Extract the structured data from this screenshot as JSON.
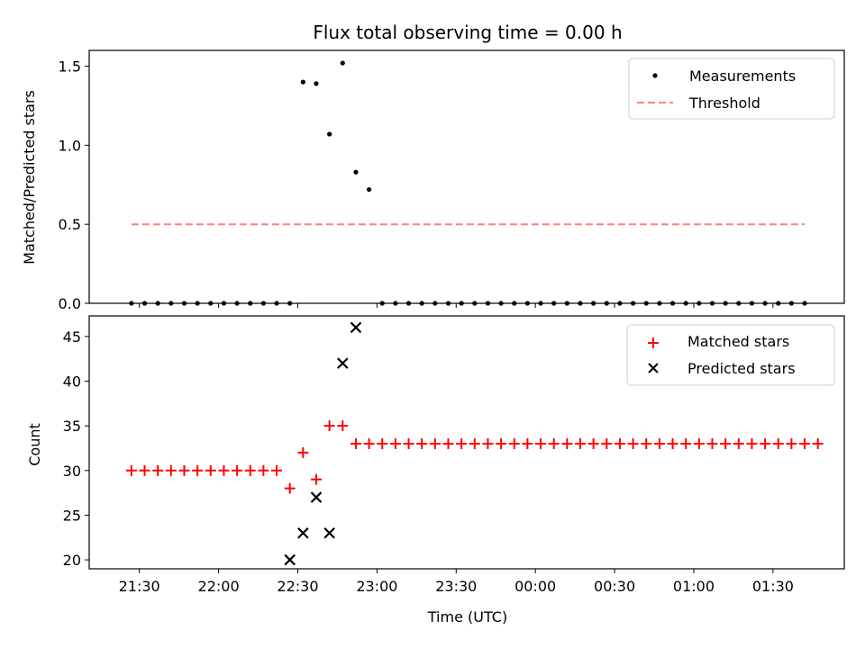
{
  "chart_data": [
    {
      "type": "scatter",
      "title": "Flux total observing time = 0.00 h",
      "ylabel": "Matched/Predicted stars",
      "xlabel": "",
      "ylim": [
        0,
        1.6
      ],
      "yticks": [
        "0.0",
        "0.5",
        "1.0",
        "1.5"
      ],
      "ytick_values": [
        0,
        0.5,
        1.0,
        1.5
      ],
      "legend_position": "top-right",
      "series": [
        {
          "name": "Measurements",
          "marker": "dot",
          "color": "#000000",
          "times": [
            "21:27",
            "21:32",
            "21:37",
            "21:42",
            "21:47",
            "21:52",
            "21:57",
            "22:02",
            "22:07",
            "22:12",
            "22:17",
            "22:22",
            "22:27",
            "22:32",
            "22:37",
            "22:42",
            "22:47",
            "22:52",
            "22:57",
            "23:02",
            "23:07",
            "23:12",
            "23:17",
            "23:22",
            "23:27",
            "23:32",
            "23:37",
            "23:42",
            "23:47",
            "23:52",
            "23:57",
            "00:02",
            "00:07",
            "00:12",
            "00:17",
            "00:22",
            "00:27",
            "00:32",
            "00:37",
            "00:42",
            "00:47",
            "00:52",
            "00:57",
            "01:02",
            "01:07",
            "01:12",
            "01:17",
            "01:22",
            "01:27",
            "01:32",
            "01:37",
            "01:42"
          ],
          "values": [
            0,
            0,
            0,
            0,
            0,
            0,
            0,
            0,
            0,
            0,
            0,
            0,
            0,
            1.4,
            1.39,
            1.07,
            1.52,
            0.83,
            0.72,
            0,
            0,
            0,
            0,
            0,
            0,
            0,
            0,
            0,
            0,
            0,
            0,
            0,
            0,
            0,
            0,
            0,
            0,
            0,
            0,
            0,
            0,
            0,
            0,
            0,
            0,
            0,
            0,
            0,
            0,
            0,
            0,
            0
          ]
        },
        {
          "name": "Threshold",
          "marker": "dashed-line",
          "color": "#ff7f7f",
          "times": [
            "21:27",
            "23:57",
            "01:42"
          ],
          "values": [
            0.5,
            0.5,
            0.5
          ]
        }
      ]
    },
    {
      "type": "scatter",
      "ylabel": "Count",
      "xlabel": "Time (UTC)",
      "ylim": [
        19,
        47.3
      ],
      "yticks": [
        "20",
        "25",
        "30",
        "35",
        "40",
        "45"
      ],
      "ytick_values": [
        20,
        25,
        30,
        35,
        40,
        45
      ],
      "xlim": [
        "21:11",
        "01:57"
      ],
      "xticks": [
        "21:30",
        "22:00",
        "22:30",
        "23:00",
        "23:30",
        "00:00",
        "00:30",
        "01:00",
        "01:30"
      ],
      "legend_position": "top-right",
      "series": [
        {
          "name": "Matched stars",
          "marker": "plus",
          "color": "#ff0000",
          "times": [
            "21:27",
            "21:32",
            "21:37",
            "21:42",
            "21:47",
            "21:52",
            "21:57",
            "22:02",
            "22:07",
            "22:12",
            "22:17",
            "22:22",
            "22:27",
            "22:32",
            "22:37",
            "22:42",
            "22:47",
            "22:52",
            "22:57",
            "23:02",
            "23:07",
            "23:12",
            "23:17",
            "23:22",
            "23:27",
            "23:32",
            "23:37",
            "23:42",
            "23:47",
            "23:52",
            "23:57",
            "00:02",
            "00:07",
            "00:12",
            "00:17",
            "00:22",
            "00:27",
            "00:32",
            "00:37",
            "00:42",
            "00:47",
            "00:52",
            "00:57",
            "01:02",
            "01:07",
            "01:12",
            "01:17",
            "01:22",
            "01:27",
            "01:32",
            "01:37",
            "01:42",
            "01:47"
          ],
          "values": [
            30,
            30,
            30,
            30,
            30,
            30,
            30,
            30,
            30,
            30,
            30,
            30,
            28,
            32,
            29,
            35,
            35,
            33,
            33,
            33,
            33,
            33,
            33,
            33,
            33,
            33,
            33,
            33,
            33,
            33,
            33,
            33,
            33,
            33,
            33,
            33,
            33,
            33,
            33,
            33,
            33,
            33,
            33,
            33,
            33,
            33,
            33,
            33,
            33,
            33,
            33,
            33,
            33
          ]
        },
        {
          "name": "Predicted stars",
          "marker": "x",
          "color": "#000000",
          "times": [
            "22:27",
            "22:32",
            "22:37",
            "22:42",
            "22:47",
            "22:52"
          ],
          "values": [
            20,
            23,
            27,
            23,
            42,
            46
          ]
        }
      ]
    }
  ]
}
